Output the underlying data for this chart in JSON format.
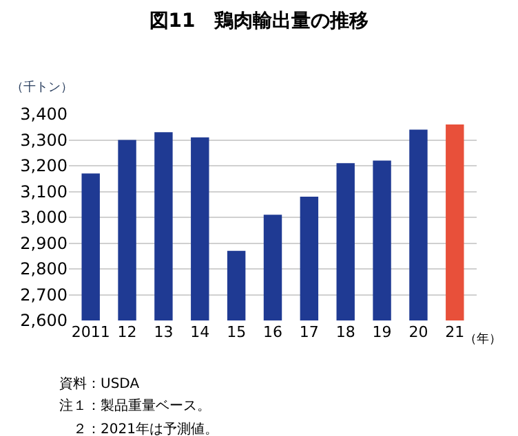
{
  "chart_data": {
    "type": "bar",
    "title": "図11　鶏肉輸出量の推移",
    "ylabel": "（千トン）",
    "xlabel": "（年）",
    "categories": [
      "2011",
      "12",
      "13",
      "14",
      "15",
      "16",
      "17",
      "18",
      "19",
      "20",
      "21"
    ],
    "values": [
      3170,
      3300,
      3330,
      3310,
      2870,
      3010,
      3080,
      3210,
      3220,
      3340,
      3360
    ],
    "colors": [
      "#1f3a93",
      "#1f3a93",
      "#1f3a93",
      "#1f3a93",
      "#1f3a93",
      "#1f3a93",
      "#1f3a93",
      "#1f3a93",
      "#1f3a93",
      "#1f3a93",
      "#e8503a"
    ],
    "ylim": [
      2600,
      3400
    ],
    "yticks": [
      {
        "value": 2600,
        "label": "2,600"
      },
      {
        "value": 2700,
        "label": "2,700"
      },
      {
        "value": 2800,
        "label": "2,800"
      },
      {
        "value": 2900,
        "label": "2,900"
      },
      {
        "value": 3000,
        "label": "3,000"
      },
      {
        "value": 3100,
        "label": "3,100"
      },
      {
        "value": 3200,
        "label": "3,200"
      },
      {
        "value": 3300,
        "label": "3,300"
      },
      {
        "value": 3400,
        "label": "3,400"
      }
    ],
    "grid": "y",
    "legend": false,
    "annotations": [
      "資料：USDA",
      "注１：製品重量ベース。",
      "　２：2021年は予測値。"
    ]
  }
}
